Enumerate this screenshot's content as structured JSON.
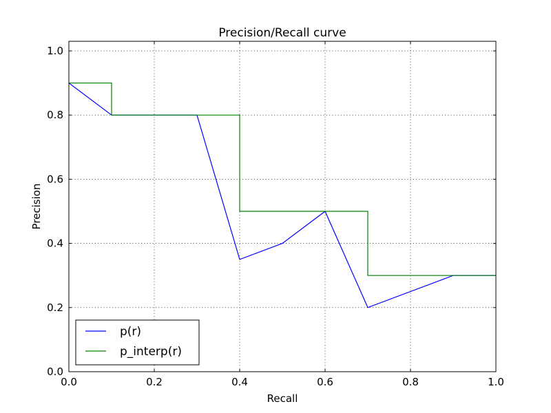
{
  "chart_data": {
    "type": "line",
    "title": "Precision/Recall curve",
    "xlabel": "Recall",
    "ylabel": "Precision",
    "xlim": [
      0.0,
      1.0
    ],
    "ylim": [
      0.0,
      1.03
    ],
    "xticks": [
      0.0,
      0.2,
      0.4,
      0.6,
      0.8,
      1.0
    ],
    "xtick_labels": [
      "0.0",
      "0.2",
      "0.4",
      "0.6",
      "0.8",
      "1.0"
    ],
    "yticks": [
      0.0,
      0.2,
      0.4,
      0.6,
      0.8,
      1.0
    ],
    "ytick_labels": [
      "0.0",
      "0.2",
      "0.4",
      "0.6",
      "0.8",
      "1.0"
    ],
    "grid": true,
    "legend_position": "lower-left",
    "series": [
      {
        "name": "p(r)",
        "color": "#0000ff",
        "x": [
          0.0,
          0.1,
          0.3,
          0.4,
          0.5,
          0.6,
          0.7,
          0.9,
          1.0
        ],
        "y": [
          0.9,
          0.8,
          0.8,
          0.35,
          0.4,
          0.5,
          0.2,
          0.3,
          0.3
        ]
      },
      {
        "name": "p_interp(r)",
        "color": "#008000",
        "x": [
          0.0,
          0.1,
          0.1,
          0.4,
          0.4,
          0.7,
          0.7,
          1.0
        ],
        "y": [
          0.9,
          0.9,
          0.8,
          0.8,
          0.5,
          0.5,
          0.3,
          0.3
        ]
      }
    ]
  }
}
